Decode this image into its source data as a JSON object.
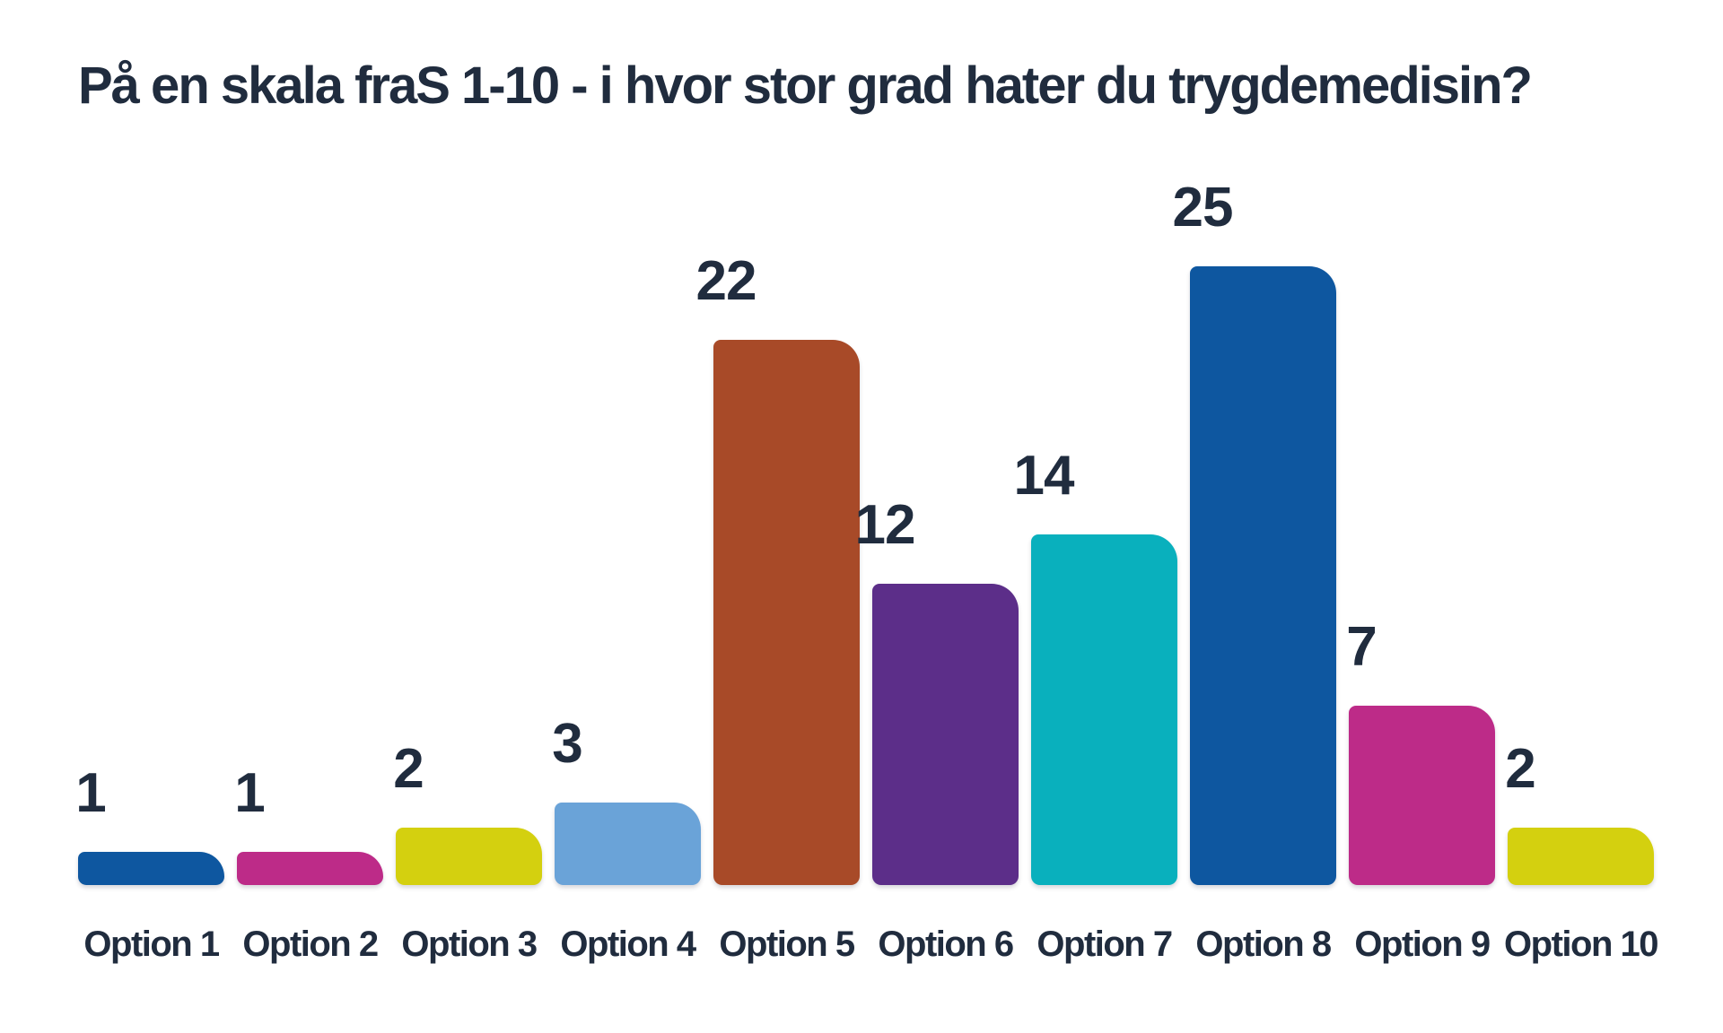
{
  "chart_data": {
    "type": "bar",
    "title": "På en skala fraS 1-10 - i hvor stor grad hater du trygdemedisin?",
    "categories": [
      "Option 1",
      "Option 2",
      "Option 3",
      "Option 4",
      "Option 5",
      "Option 6",
      "Option 7",
      "Option 8",
      "Option 9",
      "Option 10"
    ],
    "values": [
      1,
      1,
      2,
      3,
      22,
      12,
      14,
      25,
      7,
      2
    ],
    "bar_colors": [
      "#0e57a0",
      "#bd2b88",
      "#d4d00f",
      "#6aa3d8",
      "#a84a28",
      "#5c2e89",
      "#09b0bd",
      "#0e57a0",
      "#bd2b88",
      "#d4d00f"
    ],
    "value_label_color": "#202c3e",
    "category_label_color": "#202c3e",
    "title_color": "#202c3e",
    "background_color": "#ffffff",
    "xlabel": "",
    "ylabel": "",
    "ylim": [
      0,
      25
    ],
    "grid": false,
    "legend": "none",
    "value_labels_shown": true
  }
}
